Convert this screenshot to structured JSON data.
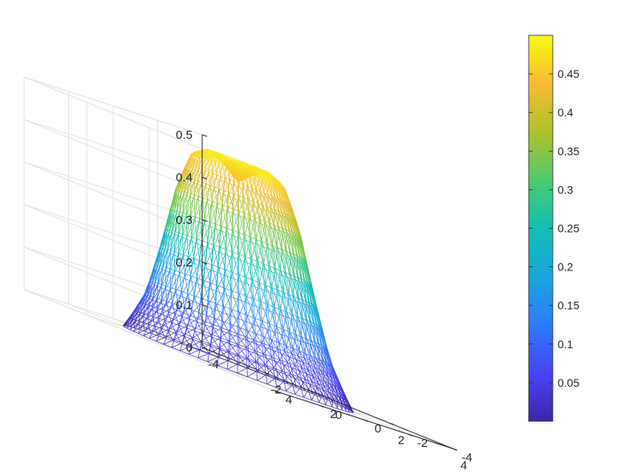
{
  "chart_data": {
    "type": "surface-mesh",
    "title": "",
    "xlabel": "",
    "ylabel": "",
    "zlabel": "",
    "colormap": "parula",
    "grid": true,
    "xlim": [
      -4,
      4
    ],
    "ylim": [
      -4,
      4
    ],
    "zlim": [
      0,
      0.5
    ],
    "x_ticks": [
      "-4",
      "-2",
      "0",
      "2",
      "4"
    ],
    "y_ticks": [
      "-4",
      "-2",
      "0",
      "2",
      "4"
    ],
    "z_ticks": [
      "0",
      "0.1",
      "0.2",
      "0.3",
      "0.4",
      "0.5"
    ],
    "surface": {
      "radial_profile_r": [
        0,
        0.4,
        0.8,
        1.2,
        1.6,
        2.0,
        2.4,
        2.8,
        3.0
      ],
      "radial_profile_z": [
        0.44,
        0.47,
        0.49,
        0.47,
        0.38,
        0.23,
        0.1,
        0.03,
        0.0
      ],
      "domain_radius": 3.0
    },
    "colorbar": {
      "position": "right",
      "range": [
        0,
        0.5
      ],
      "ticks": [
        "0.05",
        "0.1",
        "0.15",
        "0.2",
        "0.25",
        "0.3",
        "0.35",
        "0.4",
        "0.45"
      ]
    }
  }
}
